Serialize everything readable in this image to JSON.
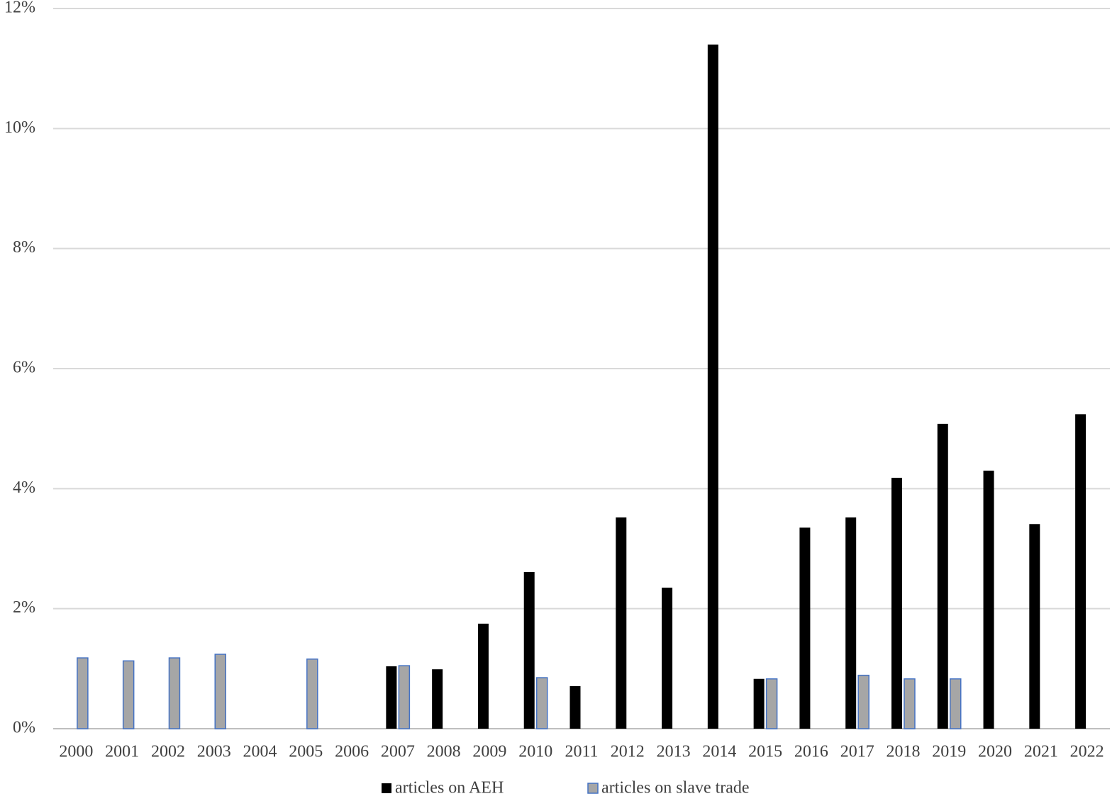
{
  "chart_data": {
    "type": "bar",
    "categories": [
      "2000",
      "2001",
      "2002",
      "2003",
      "2004",
      "2005",
      "2006",
      "2007",
      "2008",
      "2009",
      "2010",
      "2011",
      "2012",
      "2013",
      "2014",
      "2015",
      "2016",
      "2017",
      "2018",
      "2019",
      "2020",
      "2021",
      "2022"
    ],
    "series": [
      {
        "name": "articles on AEH",
        "color": "#000000",
        "values": [
          null,
          null,
          null,
          null,
          null,
          null,
          null,
          1.04,
          0.99,
          1.75,
          2.61,
          0.71,
          3.52,
          2.35,
          11.4,
          0.83,
          3.35,
          3.52,
          4.18,
          5.08,
          4.3,
          3.41,
          5.24
        ]
      },
      {
        "name": "articles on slave trade",
        "color": "#a6a6a6",
        "values": [
          1.18,
          1.13,
          1.18,
          1.24,
          null,
          1.16,
          null,
          1.05,
          null,
          null,
          0.85,
          null,
          null,
          null,
          null,
          0.83,
          null,
          0.89,
          0.83,
          0.83,
          null,
          null,
          null
        ]
      }
    ],
    "ylim": [
      0,
      12
    ],
    "yticks": [
      {
        "value": 0,
        "label": "0%"
      },
      {
        "value": 2,
        "label": "2%"
      },
      {
        "value": 4,
        "label": "4%"
      },
      {
        "value": 6,
        "label": "6%"
      },
      {
        "value": 8,
        "label": "8%"
      },
      {
        "value": 10,
        "label": "10%"
      },
      {
        "value": 12,
        "label": "12%"
      }
    ],
    "grid": true,
    "legend": "bottom"
  }
}
